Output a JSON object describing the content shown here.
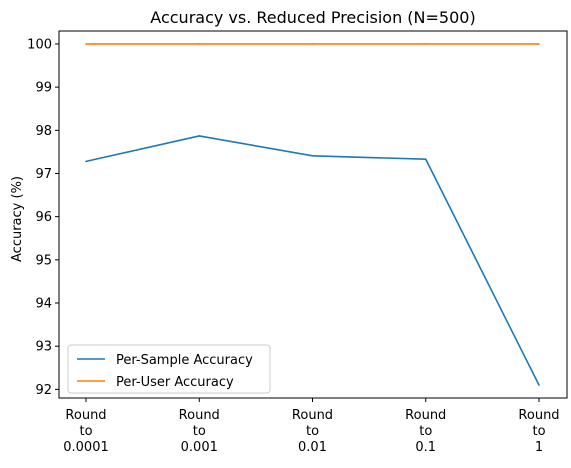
{
  "chart_data": {
    "type": "line",
    "title": "Accuracy vs. Reduced Precision (N=500)",
    "xlabel": "",
    "ylabel": "Accuracy (%)",
    "categories": [
      [
        "Round",
        "to",
        "0.0001"
      ],
      [
        "Round",
        "to",
        "0.001"
      ],
      [
        "Round",
        "to",
        "0.01"
      ],
      [
        "Round",
        "to",
        "0.1"
      ],
      [
        "Round",
        "to",
        "1"
      ]
    ],
    "ylim": [
      91.8,
      100.3
    ],
    "yticks": [
      92,
      93,
      94,
      95,
      96,
      97,
      98,
      99,
      100
    ],
    "grid": false,
    "legend_position": "lower-left",
    "series": [
      {
        "name": "Per-Sample Accuracy",
        "color": "#1f77b4",
        "values": [
          97.28,
          97.87,
          97.41,
          97.33,
          92.1
        ]
      },
      {
        "name": "Per-User Accuracy",
        "color": "#ff7f0e",
        "values": [
          100,
          100,
          100,
          100,
          100
        ]
      }
    ]
  }
}
